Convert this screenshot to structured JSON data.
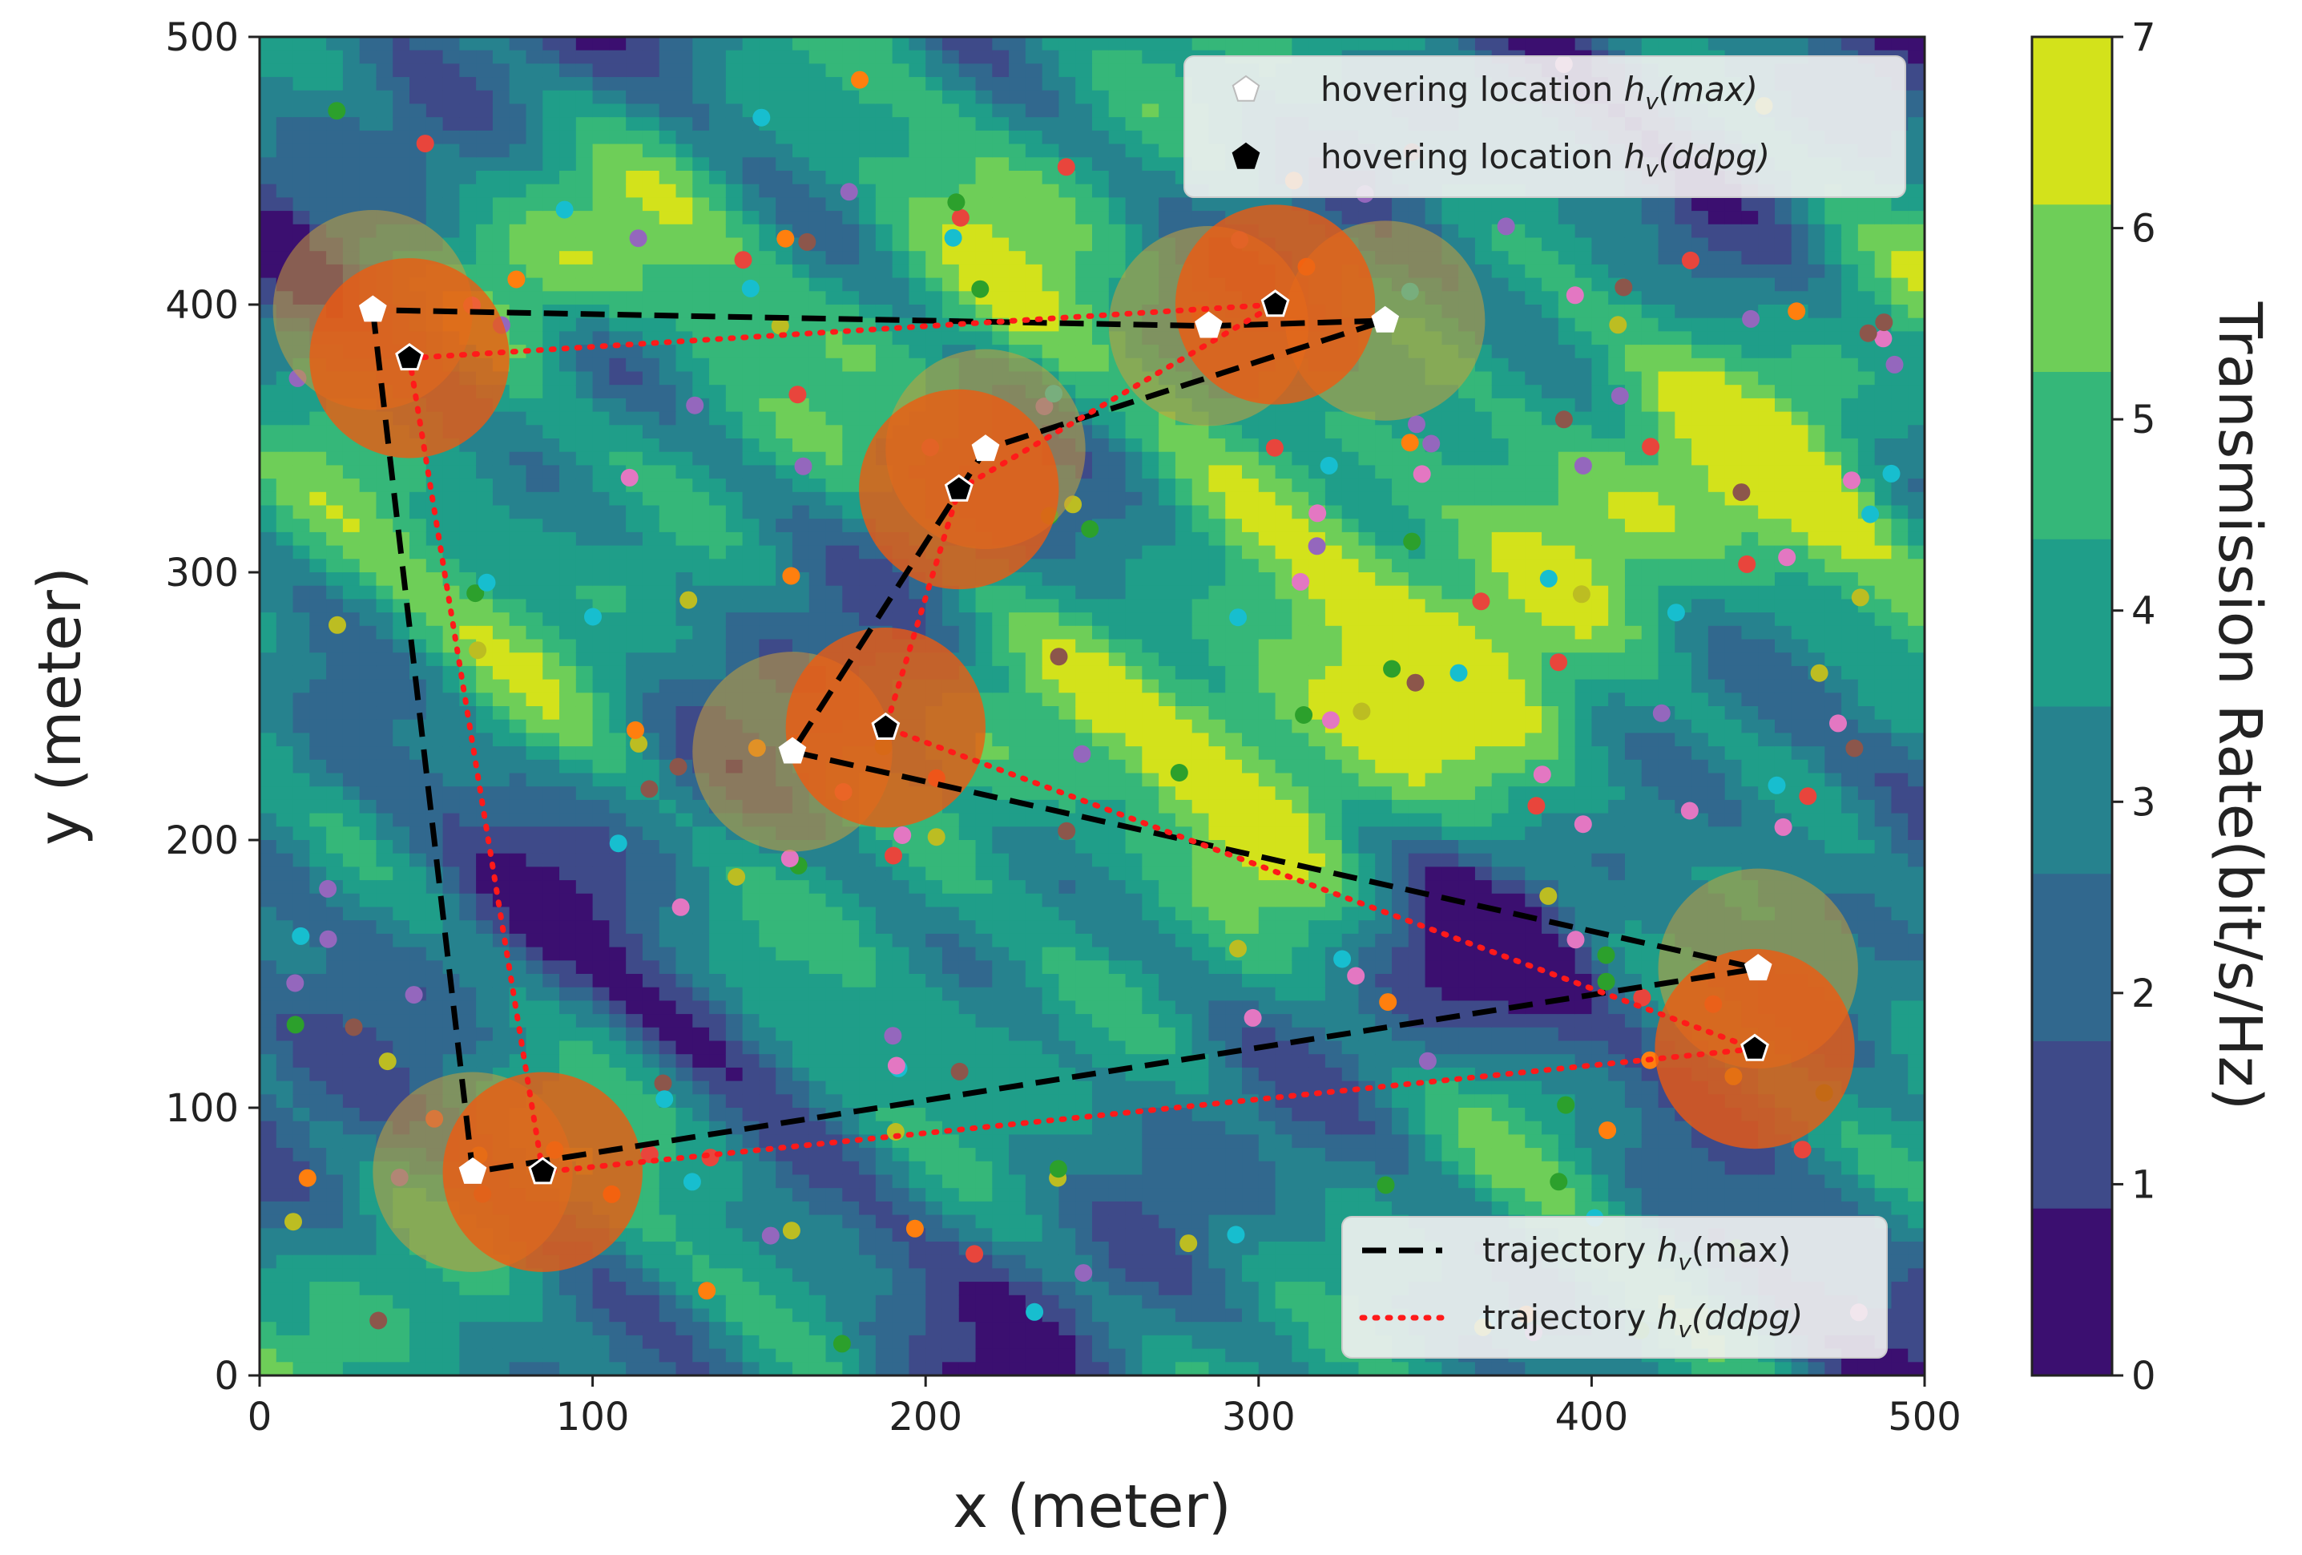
{
  "chart_data": {
    "type": "heatmap",
    "xlabel": "x (meter)",
    "ylabel": "y (meter)",
    "xlim": [
      0,
      500
    ],
    "ylim": [
      0,
      500
    ],
    "x_ticks": [
      "0",
      "100",
      "200",
      "300",
      "400",
      "500"
    ],
    "y_ticks": [
      "0",
      "100",
      "200",
      "300",
      "400",
      "500"
    ],
    "colorbar": {
      "label": "Transmission Rate(bit/s/Hz)",
      "range": [
        0,
        7
      ],
      "ticks": [
        "0",
        "1",
        "2",
        "3",
        "4",
        "5",
        "6",
        "7"
      ],
      "levels": [
        "#3b0f70",
        "#3e4a89",
        "#31688e",
        "#26828e",
        "#1f9e89",
        "#35b779",
        "#6ece58",
        "#d3e21b"
      ]
    },
    "legend_hover": {
      "placement": "top-right",
      "items": [
        {
          "prefix": "hovering location ",
          "sym": "h",
          "sub": "v",
          "suffix": "(max)",
          "marker": "white-pentagon"
        },
        {
          "prefix": "hovering location ",
          "sym": "h",
          "sub": "v",
          "suffix": "(ddpg)",
          "marker": "black-pentagon"
        }
      ]
    },
    "legend_trajectory": {
      "placement": "bottom-right",
      "items": [
        {
          "prefix": "trajectory ",
          "sym": "h",
          "sub": "v",
          "suffix": "(max)",
          "style": "black-dashed"
        },
        {
          "prefix": "trajectory ",
          "sym": "h",
          "sub": "v",
          "suffix": "(ddpg)",
          "style": "red-dotted"
        }
      ]
    },
    "series": [
      {
        "name": "trajectory h_v(max)",
        "color": "#000000",
        "points": [
          [
            34,
            398
          ],
          [
            64,
            76
          ],
          [
            450,
            152
          ],
          [
            160,
            233
          ],
          [
            218,
            346
          ],
          [
            338,
            394
          ],
          [
            285,
            392
          ],
          [
            34,
            398
          ]
        ]
      },
      {
        "name": "trajectory h_v(ddpg)",
        "color": "#ff1a1a",
        "points": [
          [
            45,
            380
          ],
          [
            85,
            76
          ],
          [
            449,
            122
          ],
          [
            188,
            242
          ],
          [
            210,
            331
          ],
          [
            305,
            400
          ],
          [
            45,
            380
          ]
        ]
      }
    ],
    "hover_max": [
      [
        34,
        398
      ],
      [
        64,
        76
      ],
      [
        450,
        152
      ],
      [
        160,
        233
      ],
      [
        218,
        346
      ],
      [
        285,
        392
      ],
      [
        338,
        394
      ]
    ],
    "hover_ddpg": [
      [
        45,
        380
      ],
      [
        85,
        76
      ],
      [
        449,
        122
      ],
      [
        188,
        242
      ],
      [
        210,
        331
      ],
      [
        305,
        400
      ]
    ],
    "coverage_radius": 30
  }
}
